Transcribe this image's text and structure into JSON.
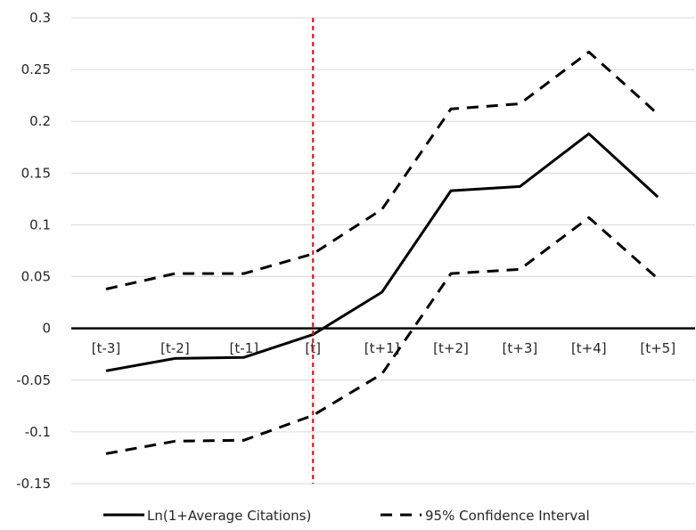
{
  "chart_data": {
    "type": "line",
    "title": "",
    "xlabel": "",
    "ylabel": "",
    "categories": [
      "[t-3]",
      "[t-2]",
      "[t-1]",
      "[t]",
      "[t+1]",
      "[t+2]",
      "[t+3]",
      "[t+4]",
      "[t+5]"
    ],
    "ylim": [
      -0.15,
      0.3
    ],
    "yticks": [
      0.3,
      0.25,
      0.2,
      0.15,
      0.1,
      0.05,
      0,
      -0.05,
      -0.1,
      -0.15
    ],
    "ytick_labels": [
      "0.3",
      "0.25",
      "0.2",
      "0.15",
      "0.1",
      "0.05",
      "0",
      "-0.05",
      "-0.1",
      "-0.15"
    ],
    "grid": true,
    "legend_position": "bottom",
    "vertical_marker": {
      "category": "[t]",
      "color": "#ff0000",
      "style": "dashed"
    },
    "series": [
      {
        "name": "Ln(1+Average Citations)",
        "style": "solid",
        "color": "#000000",
        "values": [
          -0.041,
          -0.029,
          -0.028,
          -0.006,
          0.035,
          0.133,
          0.137,
          0.188,
          0.127
        ]
      },
      {
        "name": "95% Confidence Interval",
        "style": "dashed",
        "color": "#000000",
        "values": [
          0.038,
          0.053,
          0.053,
          0.072,
          0.115,
          0.212,
          0.217,
          0.267,
          0.207
        ]
      },
      {
        "name": "",
        "style": "dashed",
        "color": "#000000",
        "in_legend": false,
        "values": [
          -0.121,
          -0.109,
          -0.108,
          -0.084,
          -0.044,
          0.053,
          0.057,
          0.107,
          0.048
        ]
      }
    ]
  }
}
